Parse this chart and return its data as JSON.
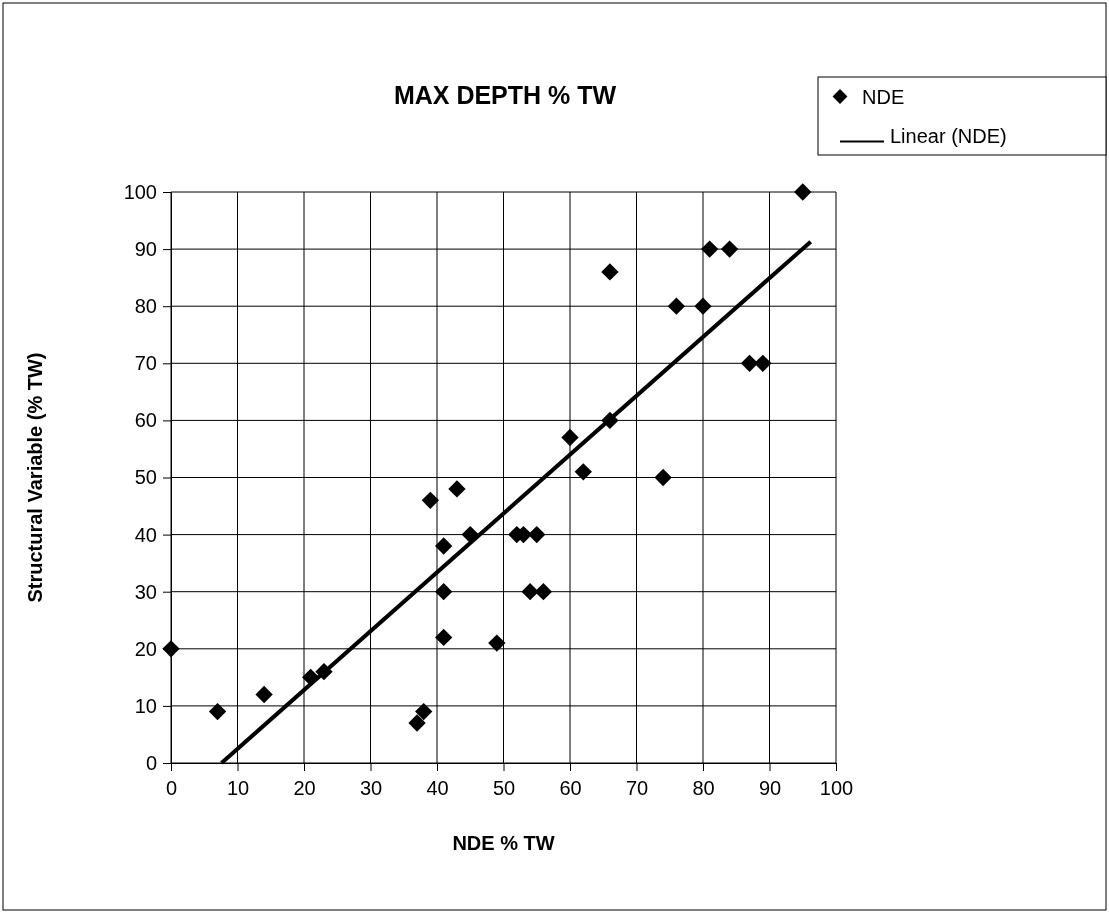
{
  "chart_data": {
    "type": "scatter",
    "title": "MAX DEPTH % TW",
    "xlabel": "NDE % TW",
    "ylabel": "Structural Variable (% TW)",
    "xlim": [
      0,
      100
    ],
    "xticks": [
      0,
      10,
      20,
      30,
      40,
      50,
      60,
      70,
      80,
      90,
      100
    ],
    "ylim": [
      0,
      100
    ],
    "yticks": [
      0,
      10,
      20,
      30,
      40,
      50,
      60,
      70,
      80,
      90,
      100
    ],
    "grid": true,
    "legend": "top right",
    "series": [
      {
        "name": "NDE",
        "marker": "diamond",
        "color": "#000000",
        "x": [
          0,
          7,
          14,
          21,
          23,
          37,
          38,
          39,
          41,
          41,
          41,
          43,
          45,
          49,
          52,
          53,
          55,
          54,
          56,
          60,
          62,
          66,
          66,
          74,
          76,
          80,
          81,
          84,
          87,
          89,
          95
        ],
        "values": [
          20,
          9,
          12,
          15,
          16,
          7,
          9,
          46,
          38,
          30,
          22,
          48,
          40,
          21,
          40,
          40,
          40,
          30,
          30,
          57,
          51,
          86,
          60,
          50,
          80,
          80,
          90,
          90,
          70,
          70,
          100
        ]
      },
      {
        "name": "Linear (NDE)",
        "type": "line",
        "marker": "none",
        "color": "#000000",
        "x": [
          7.6,
          96.2
        ],
        "values": [
          0,
          91.3
        ]
      }
    ]
  }
}
